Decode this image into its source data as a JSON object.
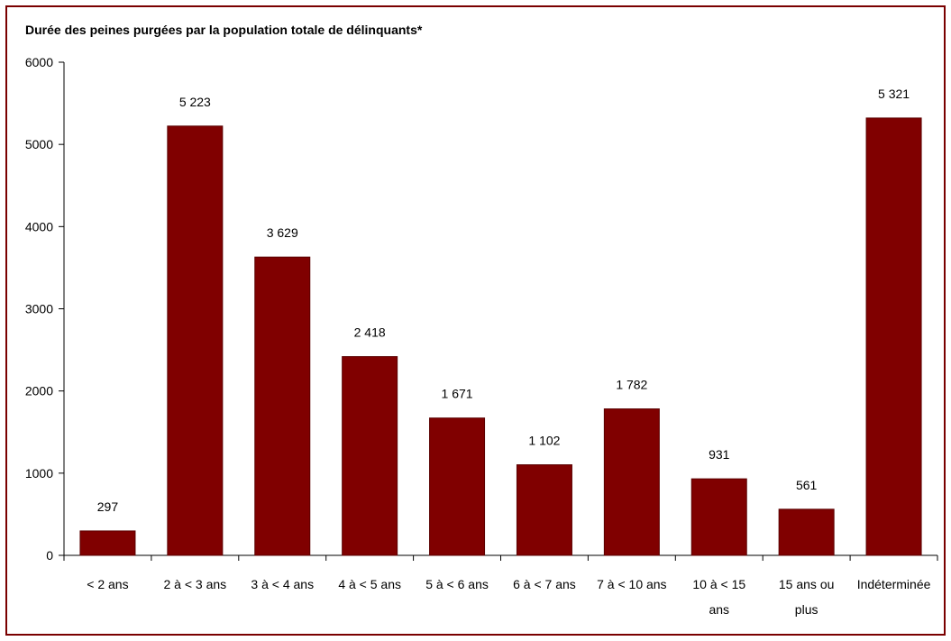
{
  "chart_data": {
    "type": "bar",
    "title": "Durée des peines purgées par la population totale de délinquants*",
    "categories": [
      [
        "< 2 ans"
      ],
      [
        "2 à < 3 ans"
      ],
      [
        "3 à < 4 ans"
      ],
      [
        "4 à < 5 ans"
      ],
      [
        "5 à < 6 ans"
      ],
      [
        "6 à < 7 ans"
      ],
      [
        "7 à < 10 ans"
      ],
      [
        "10 à < 15",
        "ans"
      ],
      [
        "15 ans ou",
        "plus"
      ],
      [
        "Indéterminée"
      ]
    ],
    "values": [
      297,
      5223,
      3629,
      2418,
      1671,
      1102,
      1782,
      931,
      561,
      5321
    ],
    "value_labels": [
      "297",
      "5 223",
      "3 629",
      "2 418",
      "1 671",
      "1 102",
      "1 782",
      "931",
      "561",
      "5 321"
    ],
    "y_ticks": [
      0,
      1000,
      2000,
      3000,
      4000,
      5000,
      6000
    ],
    "y_tick_labels": [
      "0",
      "1000",
      "2000",
      "3000",
      "4000",
      "5000",
      "6000"
    ],
    "ylim": [
      0,
      6000
    ],
    "grid": false,
    "bar_color": "#800000"
  }
}
